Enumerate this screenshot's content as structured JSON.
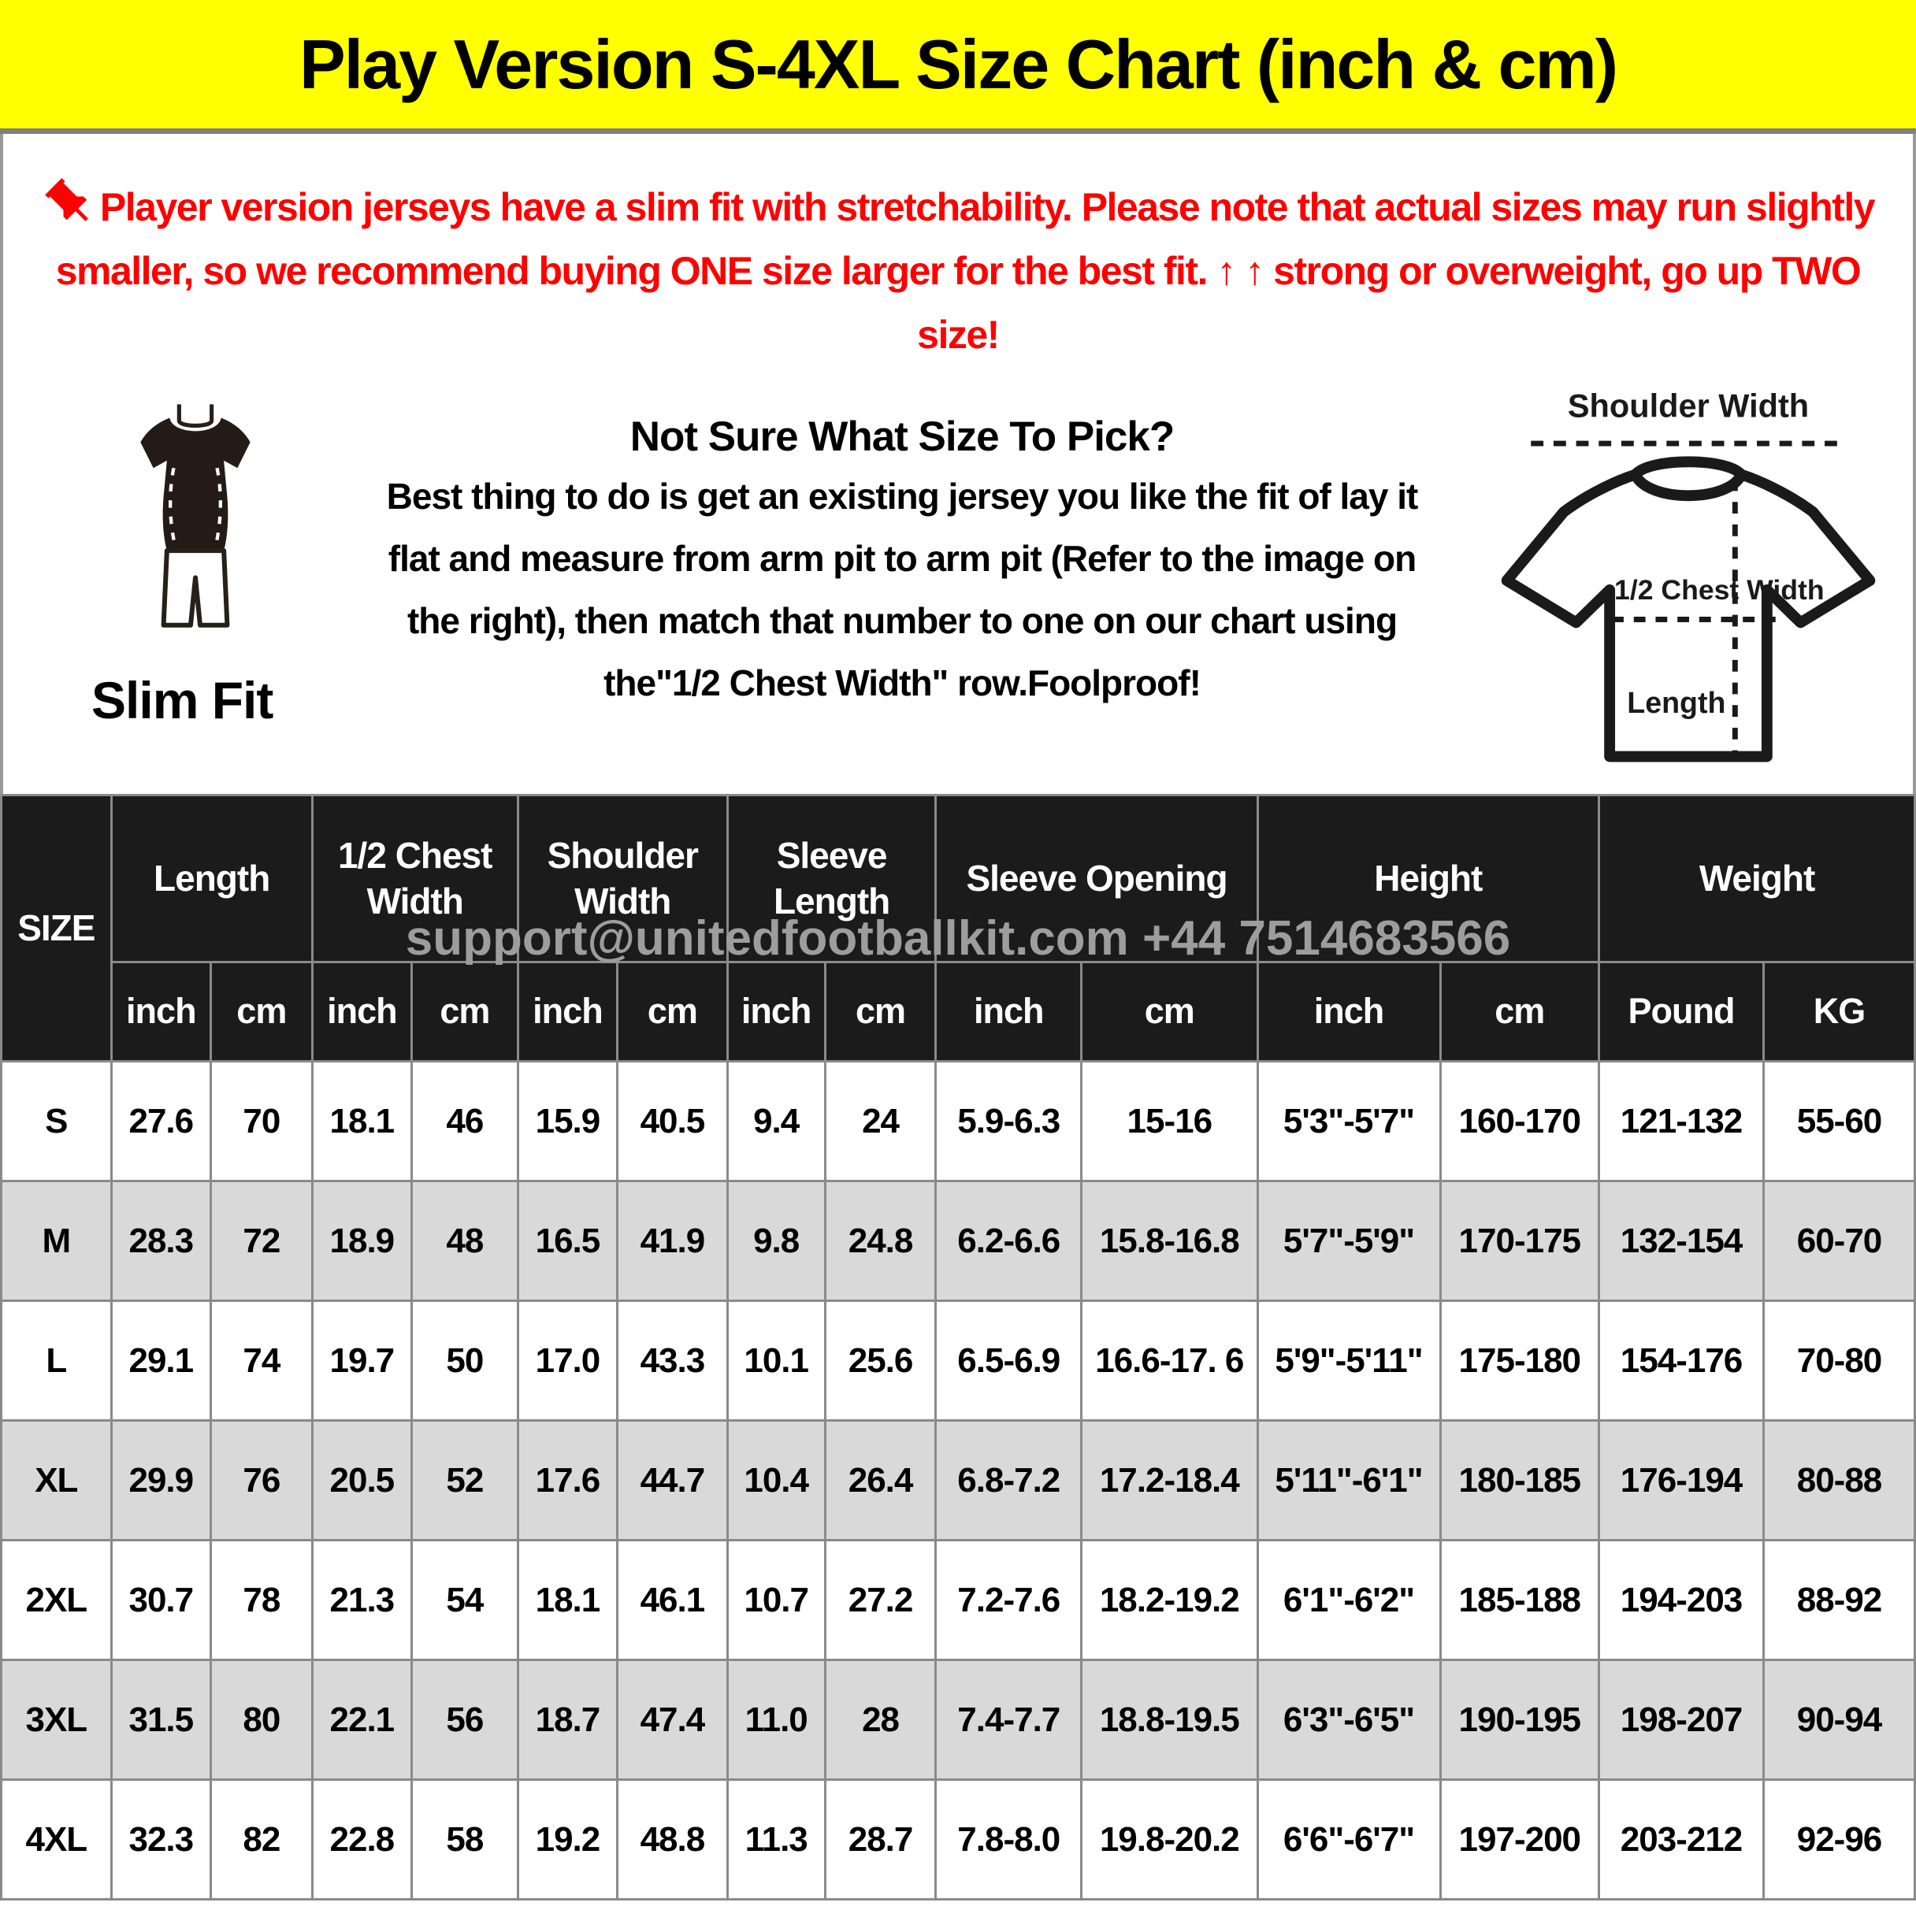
{
  "banner": {
    "title": "Play Version S-4XL Size Chart (inch & cm)"
  },
  "colors": {
    "banner_bg": "#FFFF00",
    "notice_red": "#FF0000",
    "header_bg": "#1b1b1b",
    "alt_row_bg": "#d9d9d9",
    "grid_line": "#8a8a8a",
    "watermark_gray": "#9d9d9d"
  },
  "notice": {
    "pin_icon": "red-pushpin-icon",
    "pre_arrow": "Player version jerseys have a slim fit with stretchability. Please note that actual sizes may run slightly smaller, so we recommend buying ONE size larger for the best fit. ",
    "arrows": "↑ ↑",
    "post_arrow": " strong or overweight, go up TWO size!"
  },
  "slim_fit": {
    "label": "Slim Fit",
    "figure_icon": "slim-fit-jersey-icon"
  },
  "instructions": {
    "heading": "Not Sure What Size To Pick?",
    "body": "Best thing to do is get an existing jersey you like the fit of lay it flat and measure from arm pit to arm pit (Refer to the image on the right), then match that number to one on our chart using the\"1/2 Chest Width\" row.Foolproof!"
  },
  "diagram": {
    "shoulder_label": "Shoulder Width",
    "chest_label": "1/2 Chest Width",
    "length_label": "Length"
  },
  "watermark": {
    "text": "support@unitedfootballkit.com  +44 7514683566"
  },
  "table": {
    "size_header": "SIZE",
    "groups": [
      {
        "label": "Length",
        "sub": [
          "inch",
          "cm"
        ]
      },
      {
        "label": "1/2 Chest Width",
        "sub": [
          "inch",
          "cm"
        ]
      },
      {
        "label": "Shoulder Width",
        "sub": [
          "inch",
          "cm"
        ]
      },
      {
        "label": "Sleeve Length",
        "sub": [
          "inch",
          "cm"
        ]
      },
      {
        "label": "Sleeve Opening",
        "sub": [
          "inch",
          "cm"
        ]
      },
      {
        "label": "Height",
        "sub": [
          "inch",
          "cm"
        ]
      },
      {
        "label": "Weight",
        "sub": [
          "Pound",
          "KG"
        ]
      }
    ],
    "rows": [
      {
        "size": "S",
        "values": [
          "27.6",
          "70",
          "18.1",
          "46",
          "15.9",
          "40.5",
          "9.4",
          "24",
          "5.9-6.3",
          "15-16",
          "5'3\"-5'7\"",
          "160-170",
          "121-132",
          "55-60"
        ]
      },
      {
        "size": "M",
        "values": [
          "28.3",
          "72",
          "18.9",
          "48",
          "16.5",
          "41.9",
          "9.8",
          "24.8",
          "6.2-6.6",
          "15.8-16.8",
          "5'7\"-5'9\"",
          "170-175",
          "132-154",
          "60-70"
        ]
      },
      {
        "size": "L",
        "values": [
          "29.1",
          "74",
          "19.7",
          "50",
          "17.0",
          "43.3",
          "10.1",
          "25.6",
          "6.5-6.9",
          "16.6-17. 6",
          "5'9\"-5'11\"",
          "175-180",
          "154-176",
          "70-80"
        ]
      },
      {
        "size": "XL",
        "values": [
          "29.9",
          "76",
          "20.5",
          "52",
          "17.6",
          "44.7",
          "10.4",
          "26.4",
          "6.8-7.2",
          "17.2-18.4",
          "5'11\"-6'1\"",
          "180-185",
          "176-194",
          "80-88"
        ]
      },
      {
        "size": "2XL",
        "values": [
          "30.7",
          "78",
          "21.3",
          "54",
          "18.1",
          "46.1",
          "10.7",
          "27.2",
          "7.2-7.6",
          "18.2-19.2",
          "6'1\"-6'2\"",
          "185-188",
          "194-203",
          "88-92"
        ]
      },
      {
        "size": "3XL",
        "values": [
          "31.5",
          "80",
          "22.1",
          "56",
          "18.7",
          "47.4",
          "11.0",
          "28",
          "7.4-7.7",
          "18.8-19.5",
          "6'3\"-6'5\"",
          "190-195",
          "198-207",
          "90-94"
        ]
      },
      {
        "size": "4XL",
        "values": [
          "32.3",
          "82",
          "22.8",
          "58",
          "19.2",
          "48.8",
          "11.3",
          "28.7",
          "7.8-8.0",
          "19.8-20.2",
          "6'6\"-6'7\"",
          "197-200",
          "203-212",
          "92-96"
        ]
      }
    ]
  }
}
